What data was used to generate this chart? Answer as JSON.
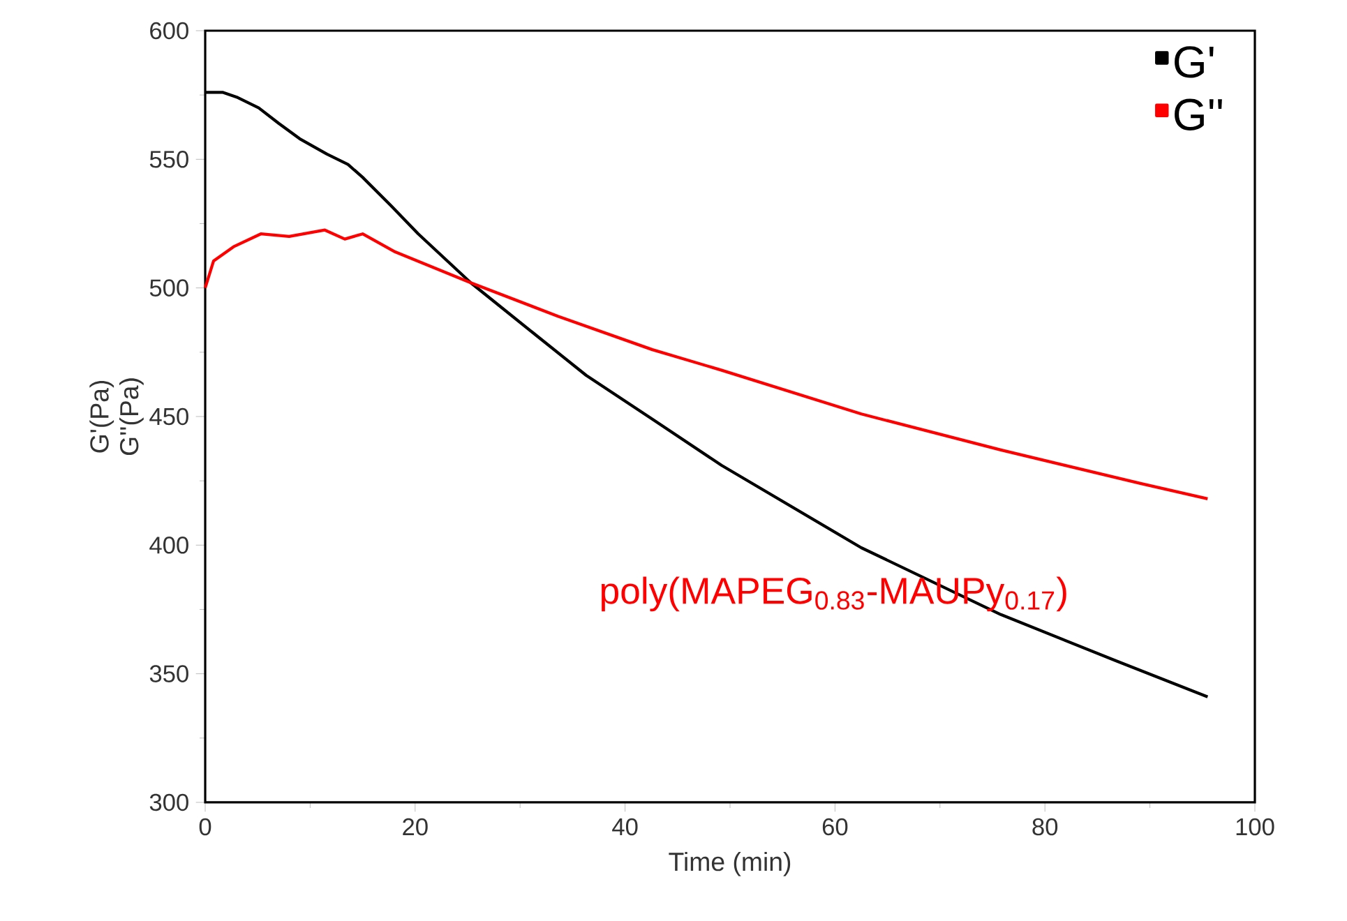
{
  "chart_data": {
    "type": "line",
    "xlabel": "Time (min)",
    "ylabel": "G'(Pa) G''(Pa)",
    "xlim": [
      0,
      100
    ],
    "xticks": [
      0,
      20,
      40,
      60,
      80,
      100
    ],
    "ylim": [
      300,
      600
    ],
    "yticks": [
      300,
      350,
      400,
      450,
      500,
      550,
      600
    ],
    "grid": false,
    "legend": "top right",
    "annotations": [
      "poly(MAPEG$_{0.83}$-MAUPy$_{0.17}$)"
    ],
    "series": [
      {
        "name": "G'",
        "color": "#000000",
        "x": [
          0,
          1.7,
          3.1,
          5.1,
          7.0,
          9.0,
          11.6,
          13.6,
          15.0,
          17.7,
          20.3,
          25.3,
          31.4,
          36.3,
          42.6,
          49.2,
          62.5,
          75.8,
          86.8,
          95.5
        ],
        "values": [
          576,
          576,
          574,
          570,
          564,
          558,
          552,
          548,
          543,
          532,
          521,
          502,
          482,
          466,
          449,
          431,
          399,
          373,
          355,
          341
        ]
      },
      {
        "name": "G''",
        "color": "#ff0000",
        "x": [
          0,
          0.8,
          2.7,
          5.3,
          8.0,
          11.4,
          13.3,
          15.0,
          18.1,
          25.3,
          33.6,
          42.6,
          49.2,
          62.5,
          75.8,
          89.1,
          95.5
        ],
        "values": [
          500,
          510.5,
          516,
          521,
          520,
          522.5,
          519,
          521,
          514,
          502,
          489,
          476,
          468,
          451,
          437,
          424,
          418
        ]
      }
    ]
  }
}
